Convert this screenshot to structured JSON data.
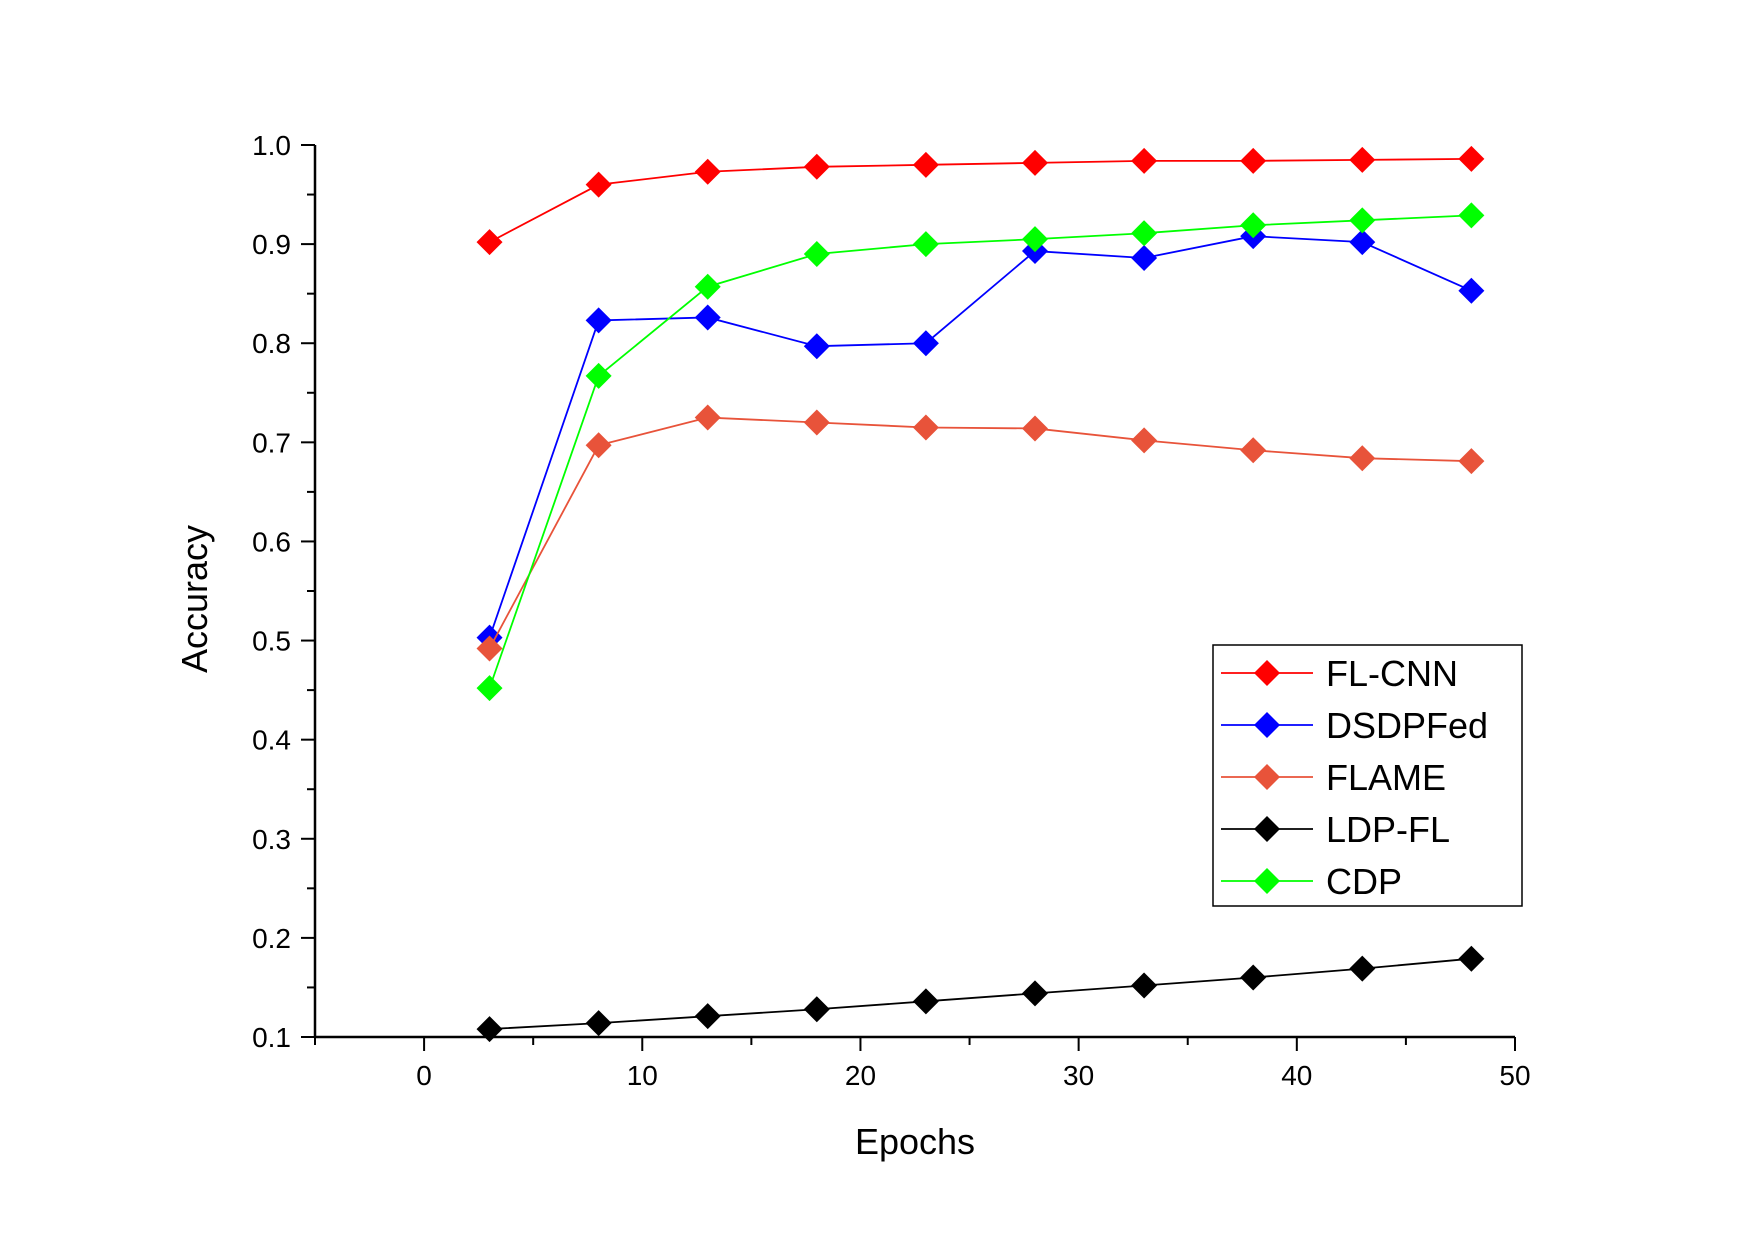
{
  "chart_data": {
    "type": "line",
    "title": "",
    "xlabel": "Epochs",
    "ylabel": "Accuracy",
    "xlim": [
      -5,
      50
    ],
    "ylim": [
      0.1,
      1.0
    ],
    "x_ticks": [
      0,
      10,
      20,
      30,
      40,
      50
    ],
    "y_ticks": [
      0.1,
      0.2,
      0.3,
      0.4,
      0.5,
      0.6,
      0.7,
      0.8,
      0.9,
      1.0
    ],
    "y_tick_labels": [
      "0.1",
      "0.2",
      "0.3",
      "0.4",
      "0.5",
      "0.6",
      "0.7",
      "0.8",
      "0.9",
      "1.0"
    ],
    "x_tick_labels": [
      "0",
      "10",
      "20",
      "30",
      "40",
      "50"
    ],
    "grid": false,
    "legend_position": "lower-right",
    "marker": "diamond",
    "x": [
      3,
      8,
      13,
      18,
      23,
      28,
      33,
      38,
      43,
      48
    ],
    "series": [
      {
        "name": "FL-CNN",
        "color": "#ff0000",
        "values": [
          0.902,
          0.96,
          0.973,
          0.978,
          0.98,
          0.982,
          0.984,
          0.984,
          0.985,
          0.986
        ]
      },
      {
        "name": "DSDPFed",
        "color": "#0000ff",
        "values": [
          0.503,
          0.823,
          0.826,
          0.797,
          0.8,
          0.893,
          0.886,
          0.908,
          0.902,
          0.853
        ]
      },
      {
        "name": "FLAME",
        "color": "#e8533a",
        "values": [
          0.492,
          0.697,
          0.725,
          0.72,
          0.715,
          0.714,
          0.702,
          0.692,
          0.684,
          0.681
        ]
      },
      {
        "name": "LDP-FL",
        "color": "#000000",
        "values": [
          0.108,
          0.114,
          0.121,
          0.128,
          0.136,
          0.144,
          0.152,
          0.16,
          0.169,
          0.179
        ]
      },
      {
        "name": "CDP",
        "color": "#00ff00",
        "values": [
          0.452,
          0.767,
          0.857,
          0.89,
          0.9,
          0.905,
          0.911,
          0.919,
          0.924,
          0.929
        ]
      }
    ]
  }
}
